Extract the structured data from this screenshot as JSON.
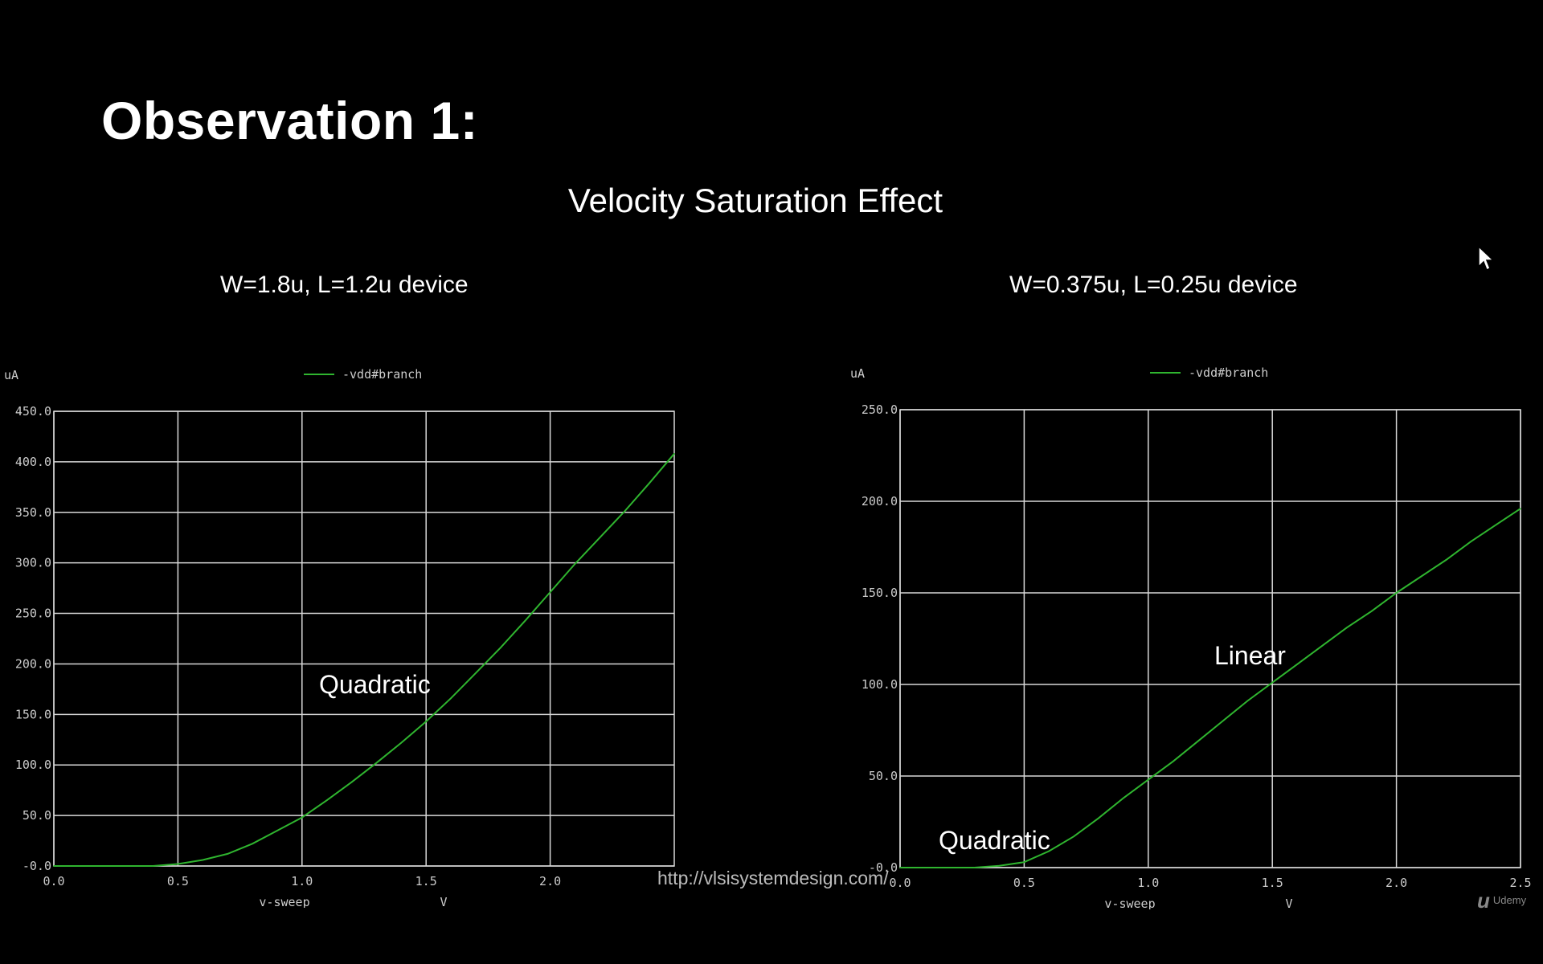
{
  "slide": {
    "title": "Observation 1:",
    "subtitle": "Velocity Saturation Effect",
    "url": "http://vlsisystemdesign.com/",
    "brand": "Udemy",
    "brand_mark": "u"
  },
  "colors": {
    "background": "#000000",
    "grid": "#d8d8d8",
    "trace": "#2fb52f",
    "text": "#ffffff",
    "axis_text": "#cccccc"
  },
  "annotations": {
    "left_quadratic": "Quadratic",
    "right_linear": "Linear",
    "right_quadratic": "Quadratic"
  },
  "chart_data": [
    {
      "type": "line",
      "title": "W=1.8u, L=1.2u device",
      "xlabel": "v-sweep",
      "xunit": "V",
      "yunit": "uA",
      "xlim": [
        0.0,
        2.5
      ],
      "ylim": [
        0,
        450
      ],
      "xticks": [
        "0.0",
        "0.5",
        "1.0",
        "1.5",
        "2.0"
      ],
      "yticks": [
        "-0.0",
        "50.0",
        "100.0",
        "150.0",
        "200.0",
        "250.0",
        "300.0",
        "350.0",
        "400.0",
        "450.0"
      ],
      "grid": true,
      "legend_position": "top-center",
      "series": [
        {
          "name": "-vdd#branch",
          "x": [
            0.0,
            0.4,
            0.5,
            0.6,
            0.7,
            0.8,
            0.9,
            1.0,
            1.1,
            1.2,
            1.3,
            1.4,
            1.5,
            1.6,
            1.7,
            1.8,
            1.9,
            2.0,
            2.1,
            2.2,
            2.3,
            2.4,
            2.5
          ],
          "y": [
            0,
            0,
            2,
            6,
            12,
            22,
            35,
            48,
            65,
            83,
            102,
            122,
            143,
            166,
            191,
            216,
            243,
            271,
            299,
            325,
            351,
            379,
            408
          ]
        }
      ]
    },
    {
      "type": "line",
      "title": "W=0.375u, L=0.25u device",
      "xlabel": "v-sweep",
      "xunit": "V",
      "yunit": "uA",
      "xlim": [
        0.0,
        2.5
      ],
      "ylim": [
        0,
        250
      ],
      "xticks": [
        "0.0",
        "0.5",
        "1.0",
        "1.5",
        "2.0",
        "2.5"
      ],
      "yticks": [
        "-0.0",
        "50.0",
        "100.0",
        "150.0",
        "200.0",
        "250.0"
      ],
      "grid": true,
      "legend_position": "top-center",
      "series": [
        {
          "name": "-vdd#branch",
          "x": [
            0.0,
            0.3,
            0.4,
            0.5,
            0.6,
            0.7,
            0.8,
            0.9,
            1.0,
            1.1,
            1.2,
            1.3,
            1.4,
            1.5,
            1.6,
            1.7,
            1.8,
            1.9,
            2.0,
            2.1,
            2.2,
            2.3,
            2.4,
            2.5
          ],
          "y": [
            0,
            0,
            1,
            3,
            9,
            17,
            27,
            38,
            48,
            58,
            69,
            80,
            91,
            101,
            111,
            121,
            131,
            140,
            150,
            159,
            168,
            178,
            187,
            196
          ]
        }
      ]
    }
  ]
}
